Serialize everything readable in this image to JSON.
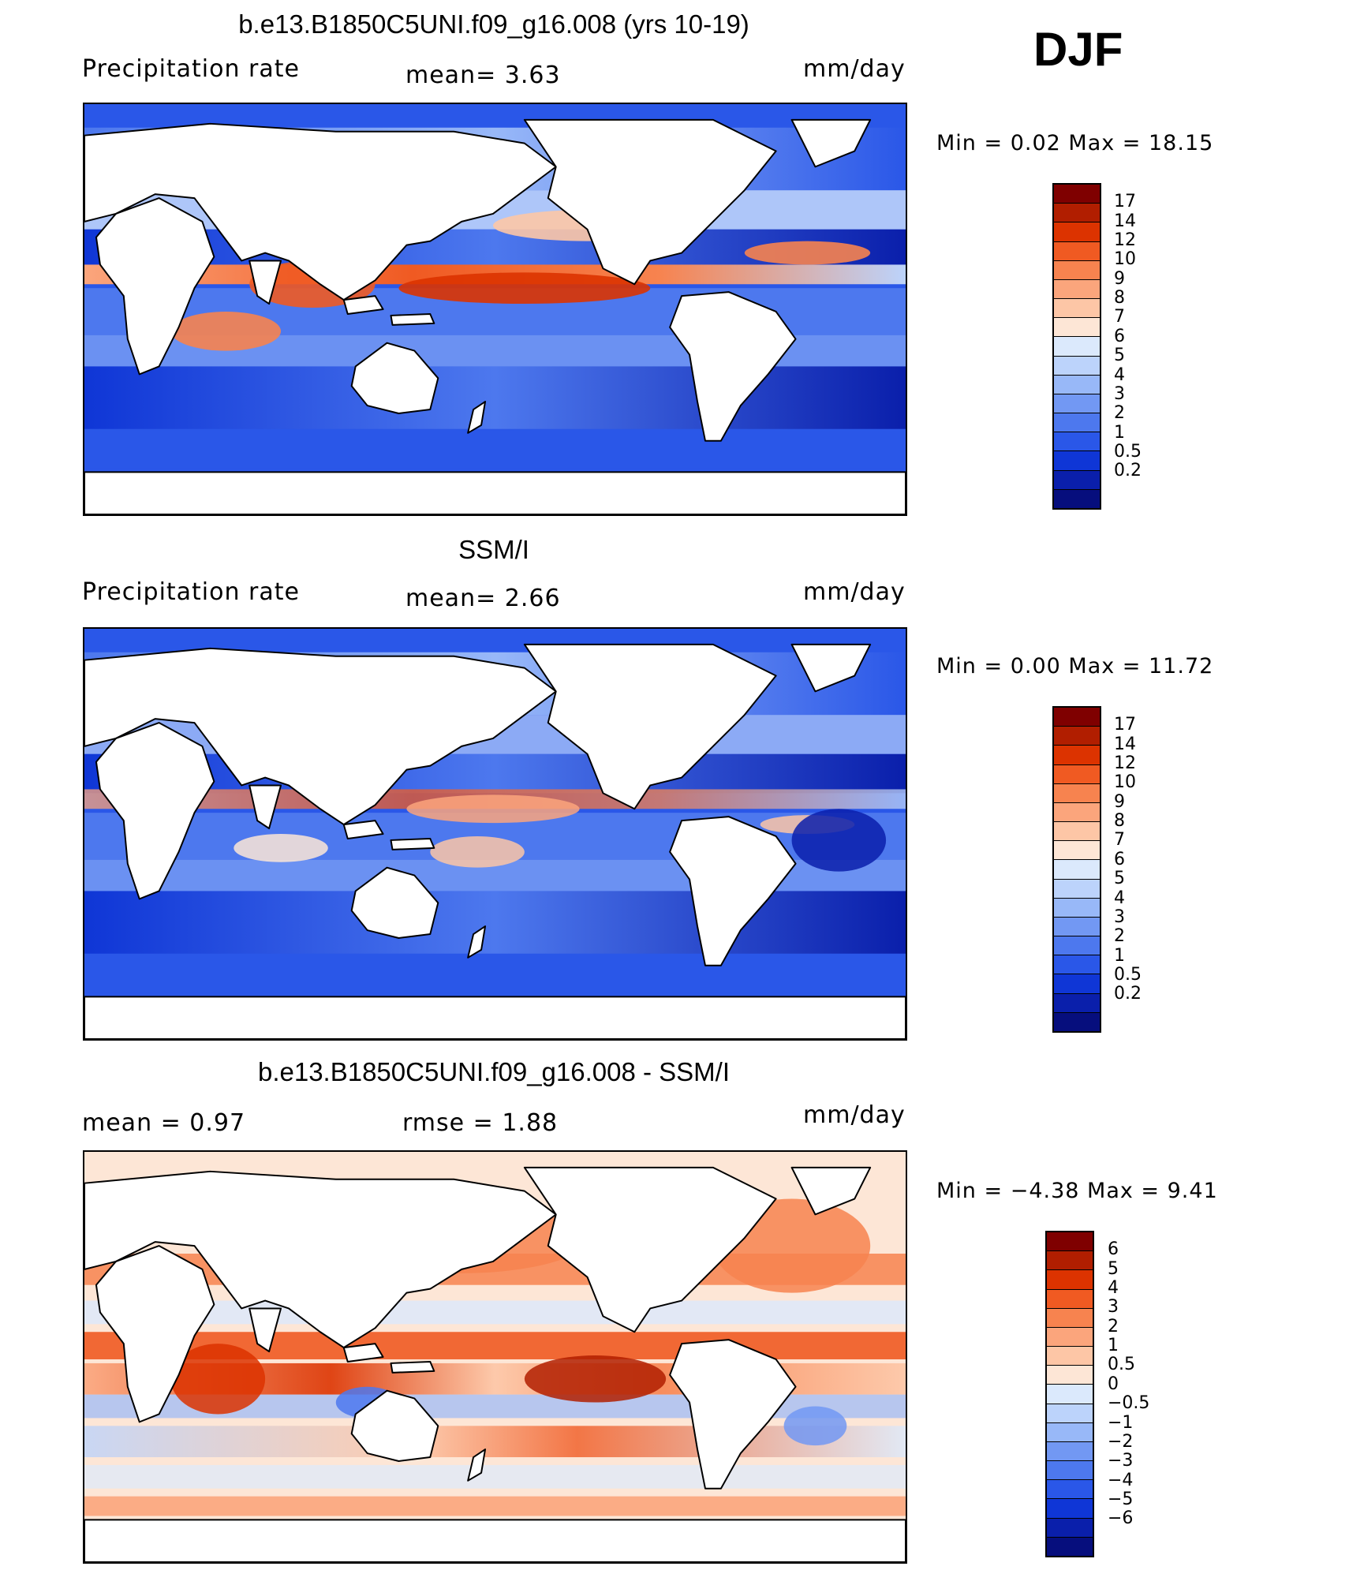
{
  "season_label": "DJF",
  "panels": [
    {
      "title": "b.e13.B1850C5UNI.f09_g16.008 (yrs 10-19)",
      "left_label": "Precipitation  rate",
      "mean_text": "mean=     3.63",
      "units": "mm/day",
      "minmax_text": "Min  =      0.02  Max  =     18.15",
      "kind": "model",
      "colorbar": {
        "colors": [
          "#7f0000",
          "#b11e00",
          "#dc3300",
          "#f05a22",
          "#f7834f",
          "#fba57c",
          "#fdc6a6",
          "#fde6d6",
          "#dbe9fc",
          "#bcd3fb",
          "#98b8f8",
          "#7298f3",
          "#4d78ee",
          "#2a57e8",
          "#0f36d6",
          "#0a1fab",
          "#060e7d"
        ],
        "labels": [
          "17",
          "14",
          "12",
          "10",
          "9",
          "8",
          "7",
          "6",
          "5",
          "4",
          "3",
          "2",
          "1",
          "0.5",
          "0.2"
        ]
      }
    },
    {
      "title": "SSM/I",
      "left_label": "Precipitation  rate",
      "mean_text": "mean=     2.66",
      "units": "mm/day",
      "minmax_text": "Min  =      0.00  Max  =     11.72",
      "kind": "obs",
      "colorbar": {
        "colors": [
          "#7f0000",
          "#b11e00",
          "#dc3300",
          "#f05a22",
          "#f7834f",
          "#fba57c",
          "#fdc6a6",
          "#fde6d6",
          "#dbe9fc",
          "#bcd3fb",
          "#98b8f8",
          "#7298f3",
          "#4d78ee",
          "#2a57e8",
          "#0f36d6",
          "#0a1fab",
          "#060e7d"
        ],
        "labels": [
          "17",
          "14",
          "12",
          "10",
          "9",
          "8",
          "7",
          "6",
          "5",
          "4",
          "3",
          "2",
          "1",
          "0.5",
          "0.2"
        ]
      }
    },
    {
      "title": "b.e13.B1850C5UNI.f09_g16.008 - SSM/I",
      "left_label": "mean  =      0.97",
      "mean_text": "rmse  =      1.88",
      "units": "mm/day",
      "minmax_text": "Min  =    −4.38  Max  =       9.41",
      "kind": "diff",
      "colorbar": {
        "colors": [
          "#7f0000",
          "#b11e00",
          "#dc3300",
          "#f05a22",
          "#f7834f",
          "#fba57c",
          "#fdc6a6",
          "#fde6d6",
          "#dbe9fc",
          "#bcd3fb",
          "#98b8f8",
          "#7298f3",
          "#4d78ee",
          "#2a57e8",
          "#0f36d6",
          "#0a1fab",
          "#060e7d"
        ],
        "labels": [
          "6",
          "5",
          "4",
          "3",
          "2",
          "1",
          "0.5",
          "0",
          "−0.5",
          "−1",
          "−2",
          "−3",
          "−4",
          "−5",
          "−6"
        ]
      }
    }
  ]
}
